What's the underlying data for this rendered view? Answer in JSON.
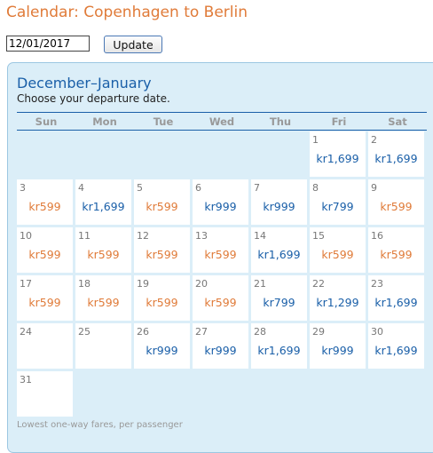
{
  "page_title": "Calendar: Copenhagen to Berlin",
  "date_input": {
    "value": "12/01/2017"
  },
  "update_button": {
    "label": "Update"
  },
  "calendar": {
    "heading": "December–January",
    "instructions": "Choose your departure date.",
    "weekdays": [
      "Sun",
      "Mon",
      "Tue",
      "Wed",
      "Thu",
      "Fri",
      "Sat"
    ],
    "start_weekday": 5,
    "days": [
      {
        "day": "1",
        "fare": "kr1,699",
        "low": false
      },
      {
        "day": "2",
        "fare": "kr1,699",
        "low": false
      },
      {
        "day": "3",
        "fare": "kr599",
        "low": true
      },
      {
        "day": "4",
        "fare": "kr1,699",
        "low": false
      },
      {
        "day": "5",
        "fare": "kr599",
        "low": true
      },
      {
        "day": "6",
        "fare": "kr999",
        "low": false
      },
      {
        "day": "7",
        "fare": "kr999",
        "low": false
      },
      {
        "day": "8",
        "fare": "kr799",
        "low": false
      },
      {
        "day": "9",
        "fare": "kr599",
        "low": true
      },
      {
        "day": "10",
        "fare": "kr599",
        "low": true
      },
      {
        "day": "11",
        "fare": "kr599",
        "low": true
      },
      {
        "day": "12",
        "fare": "kr599",
        "low": true
      },
      {
        "day": "13",
        "fare": "kr599",
        "low": true
      },
      {
        "day": "14",
        "fare": "kr1,699",
        "low": false
      },
      {
        "day": "15",
        "fare": "kr599",
        "low": true
      },
      {
        "day": "16",
        "fare": "kr599",
        "low": true
      },
      {
        "day": "17",
        "fare": "kr599",
        "low": true
      },
      {
        "day": "18",
        "fare": "kr599",
        "low": true
      },
      {
        "day": "19",
        "fare": "kr599",
        "low": true
      },
      {
        "day": "20",
        "fare": "kr599",
        "low": true
      },
      {
        "day": "21",
        "fare": "kr799",
        "low": false
      },
      {
        "day": "22",
        "fare": "kr1,299",
        "low": false
      },
      {
        "day": "23",
        "fare": "kr1,699",
        "low": false
      },
      {
        "day": "24",
        "fare": "",
        "low": false
      },
      {
        "day": "25",
        "fare": "",
        "low": false
      },
      {
        "day": "26",
        "fare": "kr999",
        "low": false
      },
      {
        "day": "27",
        "fare": "kr999",
        "low": false
      },
      {
        "day": "28",
        "fare": "kr1,699",
        "low": false
      },
      {
        "day": "29",
        "fare": "kr999",
        "low": false
      },
      {
        "day": "30",
        "fare": "kr1,699",
        "low": false
      },
      {
        "day": "31",
        "fare": "",
        "low": false
      }
    ],
    "footnote": "Lowest one-way fares, per passenger"
  },
  "colors": {
    "title": "#e07b39",
    "low_fare": "#e07b39",
    "normal_fare": "#1a5fa8",
    "panel_bg": "#dbeef8",
    "heading": "#1a5fa8"
  }
}
